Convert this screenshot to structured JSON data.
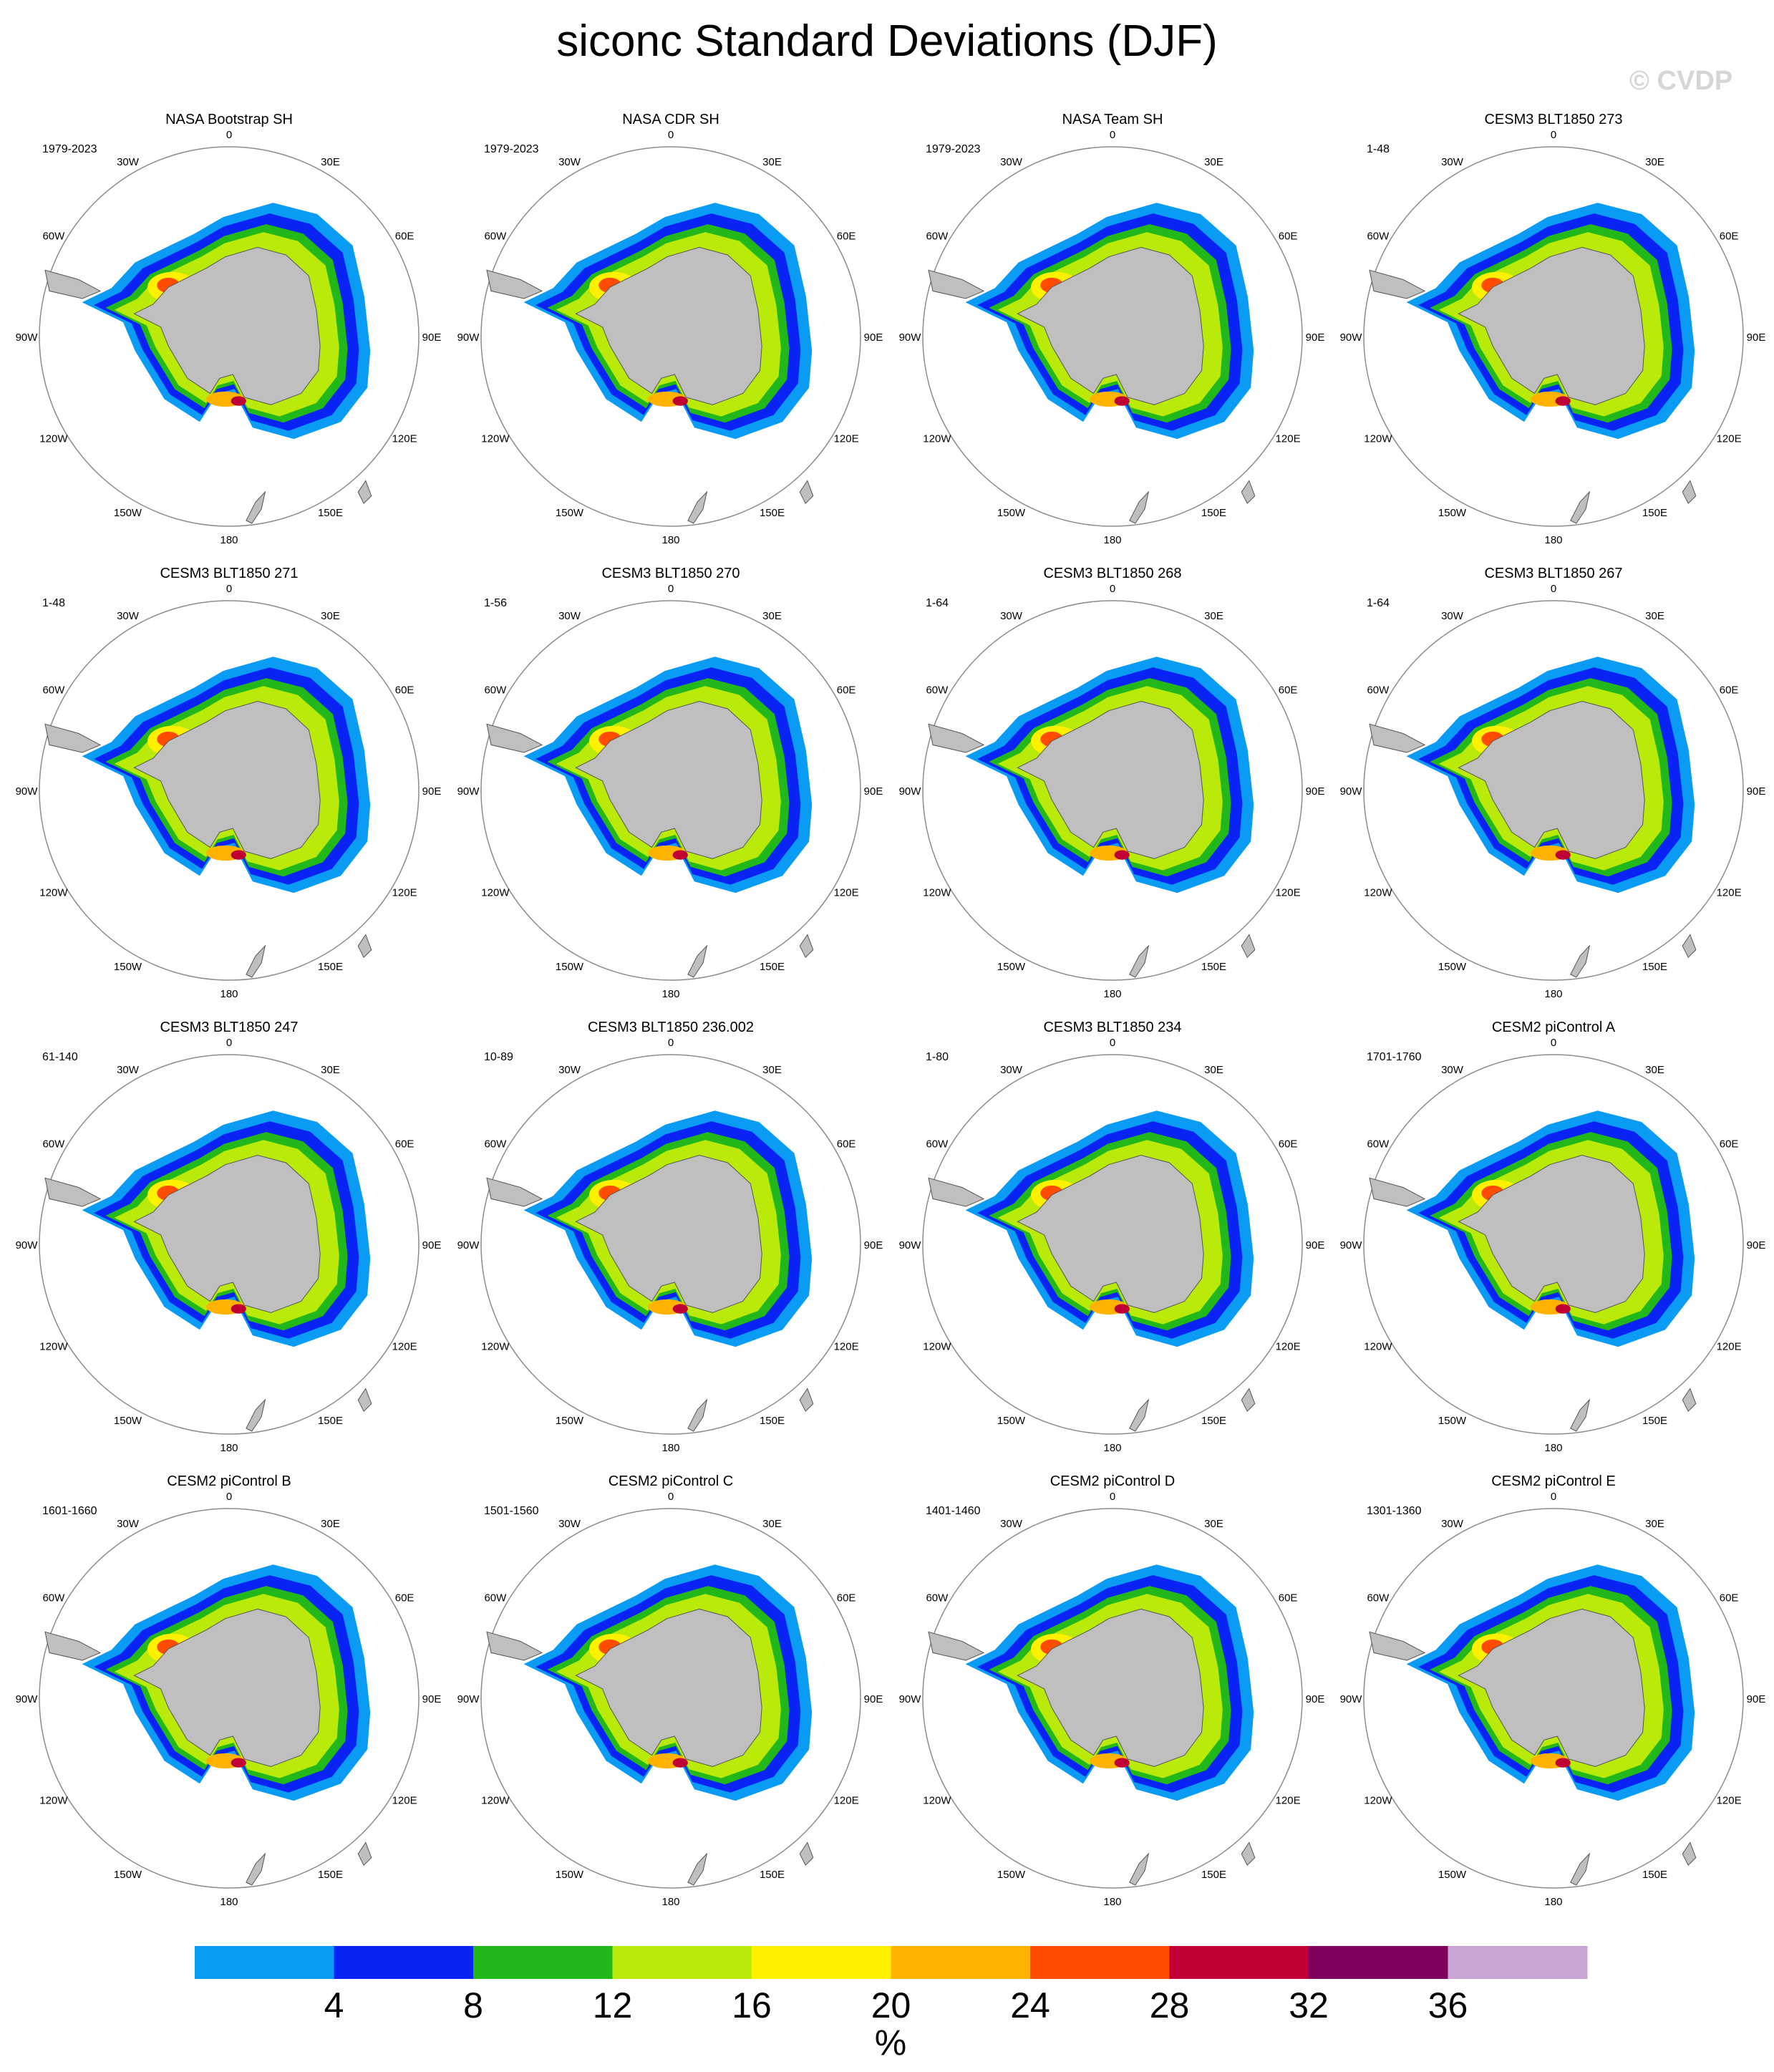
{
  "title": "siconc Standard Deviations (DJF)",
  "watermark": "© CVDP",
  "longitude_labels": [
    "0",
    "30E",
    "60E",
    "90E",
    "120E",
    "150E",
    "180",
    "150W",
    "120W",
    "90W",
    "60W",
    "30W"
  ],
  "panels": [
    {
      "title": "NASA Bootstrap SH",
      "period": "1979-2023"
    },
    {
      "title": "NASA CDR SH",
      "period": "1979-2023"
    },
    {
      "title": "NASA Team SH",
      "period": "1979-2023"
    },
    {
      "title": "CESM3 BLT1850 273",
      "period": "1-48"
    },
    {
      "title": "CESM3 BLT1850 271",
      "period": "1-48"
    },
    {
      "title": "CESM3 BLT1850 270",
      "period": "1-56"
    },
    {
      "title": "CESM3 BLT1850 268",
      "period": "1-64"
    },
    {
      "title": "CESM3 BLT1850 267",
      "period": "1-64"
    },
    {
      "title": "CESM3 BLT1850 247",
      "period": "61-140"
    },
    {
      "title": "CESM3 BLT1850 236.002",
      "period": "10-89"
    },
    {
      "title": "CESM3 BLT1850 234",
      "period": "1-80"
    },
    {
      "title": "CESM2 piControl A",
      "period": "1701-1760"
    },
    {
      "title": "CESM2 piControl B",
      "period": "1601-1660"
    },
    {
      "title": "CESM2 piControl C",
      "period": "1501-1560"
    },
    {
      "title": "CESM2 piControl D",
      "period": "1401-1460"
    },
    {
      "title": "CESM2 piControl E",
      "period": "1301-1360"
    }
  ],
  "colorbar": {
    "labels": [
      "4",
      "8",
      "12",
      "16",
      "20",
      "24",
      "28",
      "32",
      "36"
    ],
    "unit": "%",
    "colors": [
      "#0a9bf5",
      "#0a23f5",
      "#23b81a",
      "#b9ea0a",
      "#fff000",
      "#ffb300",
      "#ff4c00",
      "#c00035",
      "#80005e",
      "#c8a6d6"
    ]
  },
  "land_color": "#bfbfbf",
  "circle_color": "#8c8c8c"
}
